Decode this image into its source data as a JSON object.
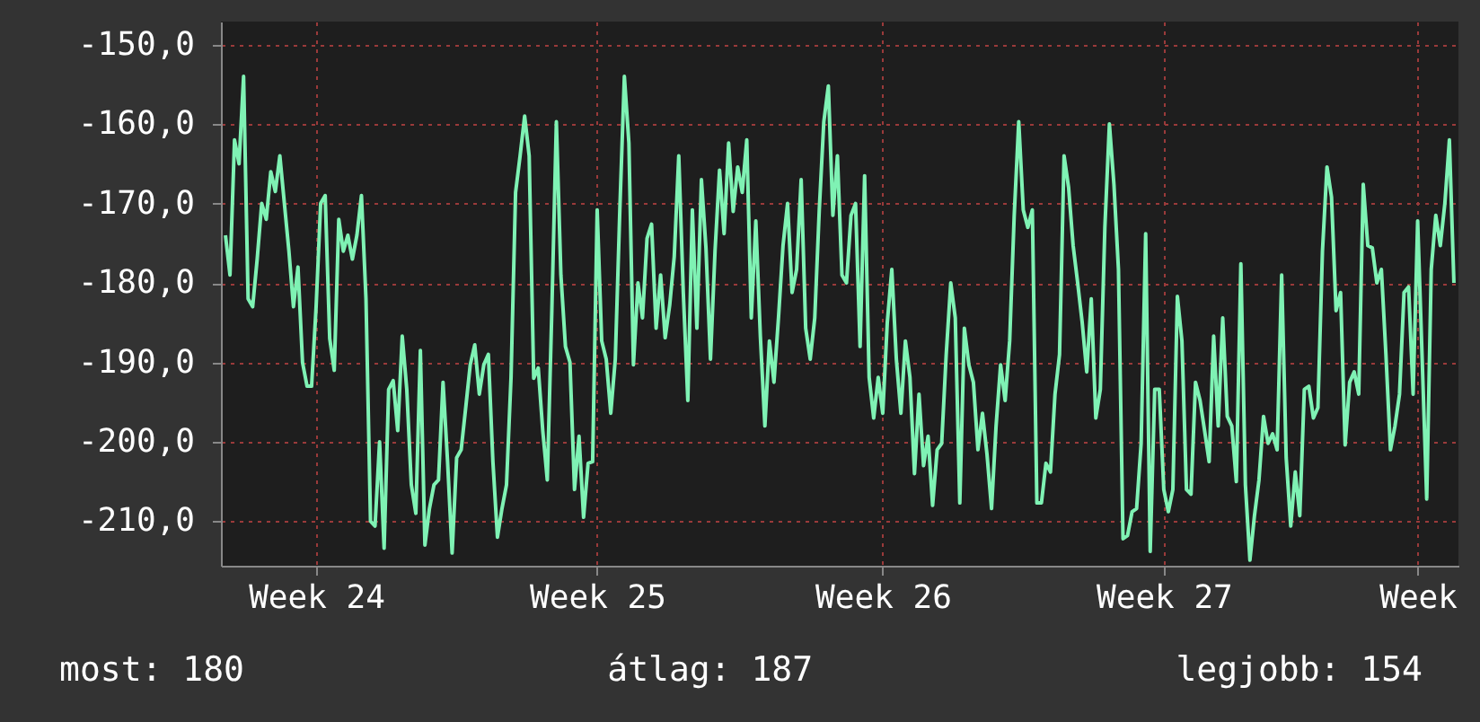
{
  "chart_data": {
    "type": "line",
    "categories": [
      null,
      null,
      null,
      null,
      null,
      null,
      null,
      null,
      null,
      null,
      null,
      null,
      null,
      null,
      null,
      null,
      null,
      null,
      null,
      null,
      "Week 24",
      null,
      null,
      null,
      null,
      null,
      null,
      null,
      null,
      null,
      null,
      null,
      null,
      null,
      null,
      null,
      null,
      null,
      null,
      null,
      null,
      null,
      null,
      null,
      null,
      null,
      null,
      null,
      null,
      null,
      null,
      null,
      null,
      null,
      null,
      null,
      null,
      null,
      null,
      null,
      null,
      null,
      null,
      null,
      null,
      null,
      null,
      null,
      null,
      null,
      null,
      null,
      null,
      null,
      null,
      null,
      null,
      null,
      null,
      null,
      null,
      null,
      "Week 25",
      null,
      null,
      null,
      null,
      null,
      null,
      null,
      null,
      null,
      null,
      null,
      null,
      null,
      null,
      null,
      null,
      null,
      null,
      null,
      null,
      null,
      null,
      null,
      null,
      null,
      null,
      null,
      null,
      null,
      null,
      null,
      null,
      null,
      null,
      null,
      null,
      null,
      null,
      null,
      null,
      null,
      null,
      null,
      null,
      null,
      null,
      null,
      null,
      null,
      null,
      null,
      null,
      null,
      null,
      null,
      null,
      null,
      null,
      null,
      null,
      null,
      null,
      "Week 26",
      null,
      null,
      null,
      null,
      null,
      null,
      null,
      null,
      null,
      null,
      null,
      null,
      null,
      null,
      null,
      null,
      null,
      null,
      null,
      null,
      null,
      null,
      null,
      null,
      null,
      null,
      null,
      null,
      null,
      null,
      null,
      null,
      null,
      null,
      null,
      null,
      null,
      null,
      null,
      null,
      null,
      null,
      null,
      null,
      null,
      null,
      null,
      null,
      null,
      null,
      null,
      null,
      null,
      null,
      null,
      null,
      null,
      null,
      null,
      null,
      null,
      "Week 27",
      null,
      null,
      null,
      null,
      null,
      null,
      null,
      null,
      null,
      null,
      null,
      null,
      null,
      null,
      null,
      null,
      null,
      null,
      null,
      null,
      null,
      null,
      null,
      null,
      null,
      null,
      null,
      null,
      null,
      null,
      null,
      null,
      null,
      null,
      null,
      null,
      null,
      null,
      null,
      null,
      null,
      null,
      null,
      null,
      null,
      null,
      null,
      null,
      null,
      null,
      null,
      null,
      null,
      null,
      null,
      "Week",
      null,
      null,
      null,
      null,
      null,
      null,
      null,
      null
    ],
    "series": [
      {
        "color": "#7ff2b4",
        "values": [
          -174,
          -179,
          -162,
          -165,
          -154,
          -182,
          -183,
          -177,
          -170,
          -172,
          -166,
          -168.5,
          -164,
          -170,
          -176,
          -183,
          -178,
          -190,
          -193,
          -193,
          -183,
          -170,
          -169,
          -187,
          -191,
          -172,
          -176,
          -174,
          -177,
          -174,
          -169,
          -182,
          -210,
          -210.6,
          -200,
          -213.4,
          -193.4,
          -192.3,
          -198.6,
          -186.7,
          -193.4,
          -205.4,
          -209,
          -188.5,
          -213,
          -208.4,
          -205.4,
          -204.8,
          -192.5,
          -202.5,
          -214,
          -202,
          -201,
          -195.7,
          -190.3,
          -187.8,
          -194,
          -190.3,
          -189,
          -202.5,
          -212,
          -208.4,
          -205.4,
          -191.9,
          -168.6,
          -164,
          -159,
          -164,
          -192,
          -190.7,
          -198.6,
          -204.8,
          -183.5,
          -159.7,
          -179,
          -188,
          -190,
          -206,
          -199.3,
          -209.5,
          -202.7,
          -202.5,
          -170.8,
          -187.3,
          -189.6,
          -196.4,
          -189.6,
          -170.8,
          -154,
          -162.4,
          -190.3,
          -180,
          -184.4,
          -174.4,
          -172.6,
          -185.7,
          -179,
          -186.9,
          -182.8,
          -176.7,
          -164,
          -181.2,
          -194.8,
          -170.8,
          -185.7,
          -167,
          -175.6,
          -189.6,
          -176,
          -165.8,
          -173.8,
          -162.4,
          -171,
          -165.4,
          -168.6,
          -162,
          -184.4,
          -172.2,
          -186.7,
          -198,
          -187.3,
          -192.5,
          -184.4,
          -175.3,
          -170,
          -181.2,
          -178.3,
          -167,
          -185.7,
          -189.6,
          -184.4,
          -170.8,
          -159.7,
          -155.2,
          -171.5,
          -164,
          -179,
          -180,
          -171.5,
          -170,
          -188,
          -166.5,
          -191.9,
          -197,
          -191.9,
          -196.4,
          -185,
          -178.3,
          -189.6,
          -196.4,
          -187.3,
          -191.9,
          -204,
          -194,
          -203,
          -199.3,
          -208,
          -201,
          -200.2,
          -189,
          -180,
          -184.4,
          -207.7,
          -185.7,
          -190.3,
          -192.5,
          -201,
          -196.4,
          -201.6,
          -208.4,
          -198,
          -190.3,
          -194.8,
          -187.3,
          -171.5,
          -159.7,
          -170.8,
          -173,
          -170.8,
          -207.7,
          -207.7,
          -202.7,
          -203.8,
          -194,
          -189,
          -164,
          -168,
          -175.3,
          -180,
          -185,
          -191.2,
          -182,
          -197,
          -193.4,
          -173,
          -160,
          -167.6,
          -178.3,
          -212.2,
          -211.8,
          -208.8,
          -208.4,
          -200.2,
          -173.8,
          -213.8,
          -193.4,
          -193.4,
          -206,
          -208.8,
          -206,
          -181.7,
          -187.3,
          -206,
          -206.6,
          -192.5,
          -194.8,
          -198.6,
          -202.5,
          -186.7,
          -198,
          -184.4,
          -196.8,
          -198,
          -205,
          -177.6,
          -205.4,
          -214.9,
          -209.3,
          -204.8,
          -196.8,
          -200.2,
          -199,
          -201,
          -179,
          -202,
          -210.6,
          -203.8,
          -209.3,
          -193.4,
          -193,
          -197,
          -195.7,
          -176,
          -165.4,
          -169.2,
          -183.5,
          -181.2,
          -200.4,
          -192.5,
          -191.2,
          -194,
          -167.6,
          -175.3,
          -175.6,
          -180,
          -178.3,
          -189,
          -201,
          -198,
          -194,
          -181.2,
          -180.5,
          -194,
          -172.2,
          -189.6,
          -207.2,
          -178.3,
          -171.5,
          -175.3,
          -170,
          -162,
          -180
        ]
      }
    ],
    "ylim": [
      -215.6,
      -147.1
    ],
    "yticks": [
      {
        "value": -150,
        "label": "-150,0"
      },
      {
        "value": -160,
        "label": "-160,0"
      },
      {
        "value": -170,
        "label": "-170,0"
      },
      {
        "value": -180,
        "label": "-180,0"
      },
      {
        "value": -190,
        "label": "-190,0"
      },
      {
        "value": -200,
        "label": "-200,0"
      },
      {
        "value": -210,
        "label": "-210,0"
      }
    ],
    "grid": true,
    "annotations": [
      "most: 180",
      "átlag: 187",
      "legjobb: 154"
    ]
  }
}
